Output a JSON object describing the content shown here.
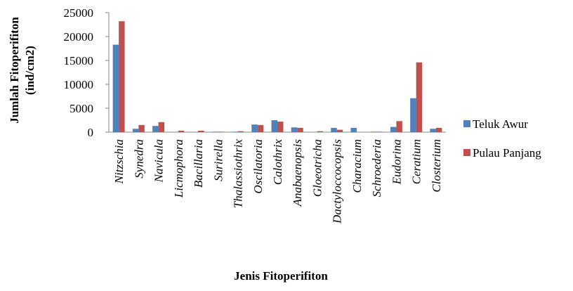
{
  "chart_data": {
    "type": "bar",
    "y_label": [
      "Jumlah Fitoperifiton",
      "(ind/cm2)"
    ],
    "x_label": "Jenis Fitoperifiton",
    "categories": [
      "Nitzschia",
      "Synedra",
      "Navicula",
      "Licmophora",
      "Bacillaria",
      "Surirella",
      "Thalassiothrix",
      "Oscilatoria",
      "Calothrix",
      "Anabaenopsis",
      "Gloeotricha",
      "Dactyloccocopsis",
      "Characium",
      "Schroederia",
      "Eudorina",
      "Ceratium",
      "Closterium"
    ],
    "series": [
      {
        "name": "Teluk Awur",
        "color": "#4f81bd",
        "values": [
          18300,
          700,
          1300,
          0,
          0,
          100,
          100,
          1600,
          2500,
          1000,
          0,
          900,
          900,
          100,
          1100,
          7100,
          700
        ]
      },
      {
        "name": "Pulau Panjang",
        "color": "#c0504d",
        "values": [
          23200,
          1500,
          2100,
          300,
          300,
          100,
          200,
          1500,
          2200,
          900,
          200,
          500,
          0,
          100,
          2300,
          14600,
          900
        ]
      }
    ],
    "ylim": [
      0,
      25000
    ],
    "yticks": [
      0,
      5000,
      10000,
      15000,
      20000,
      25000
    ],
    "legend": "right"
  }
}
